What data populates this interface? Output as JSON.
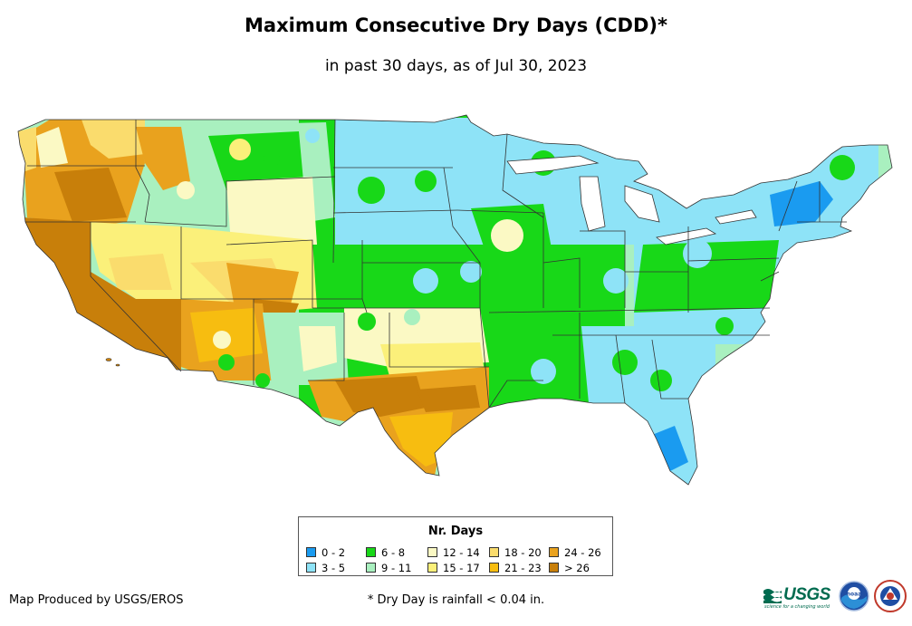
{
  "header": {
    "title": "Maximum Consecutive Dry Days (CDD)*",
    "subtitle": "in past 30 days, as of Jul 30, 2023"
  },
  "legend": {
    "title": "Nr. Days",
    "items": [
      {
        "label": "0 - 2",
        "color": "#1a9bf0"
      },
      {
        "label": "3 - 5",
        "color": "#8ee3f7"
      },
      {
        "label": "6 - 8",
        "color": "#18d818"
      },
      {
        "label": "9 - 11",
        "color": "#a9f0bf"
      },
      {
        "label": "12 - 14",
        "color": "#fbf9c4"
      },
      {
        "label": "15 - 17",
        "color": "#fbf07a"
      },
      {
        "label": "18 - 20",
        "color": "#fadc6d"
      },
      {
        "label": "21 - 23",
        "color": "#f7bd10"
      },
      {
        "label": "24 - 26",
        "color": "#e9a21e"
      },
      {
        "label": "> 26",
        "color": "#c87f0a"
      }
    ]
  },
  "footer": {
    "credit": "Map Produced by USGS/EROS",
    "footnote": "* Dry Day is rainfall < 0.04 in."
  },
  "logos": {
    "usgs": "USGS",
    "usgs_tagline": "science for a changing world",
    "noaa": "noaa",
    "nws": "NATIONAL WEATHER SERVICE"
  }
}
